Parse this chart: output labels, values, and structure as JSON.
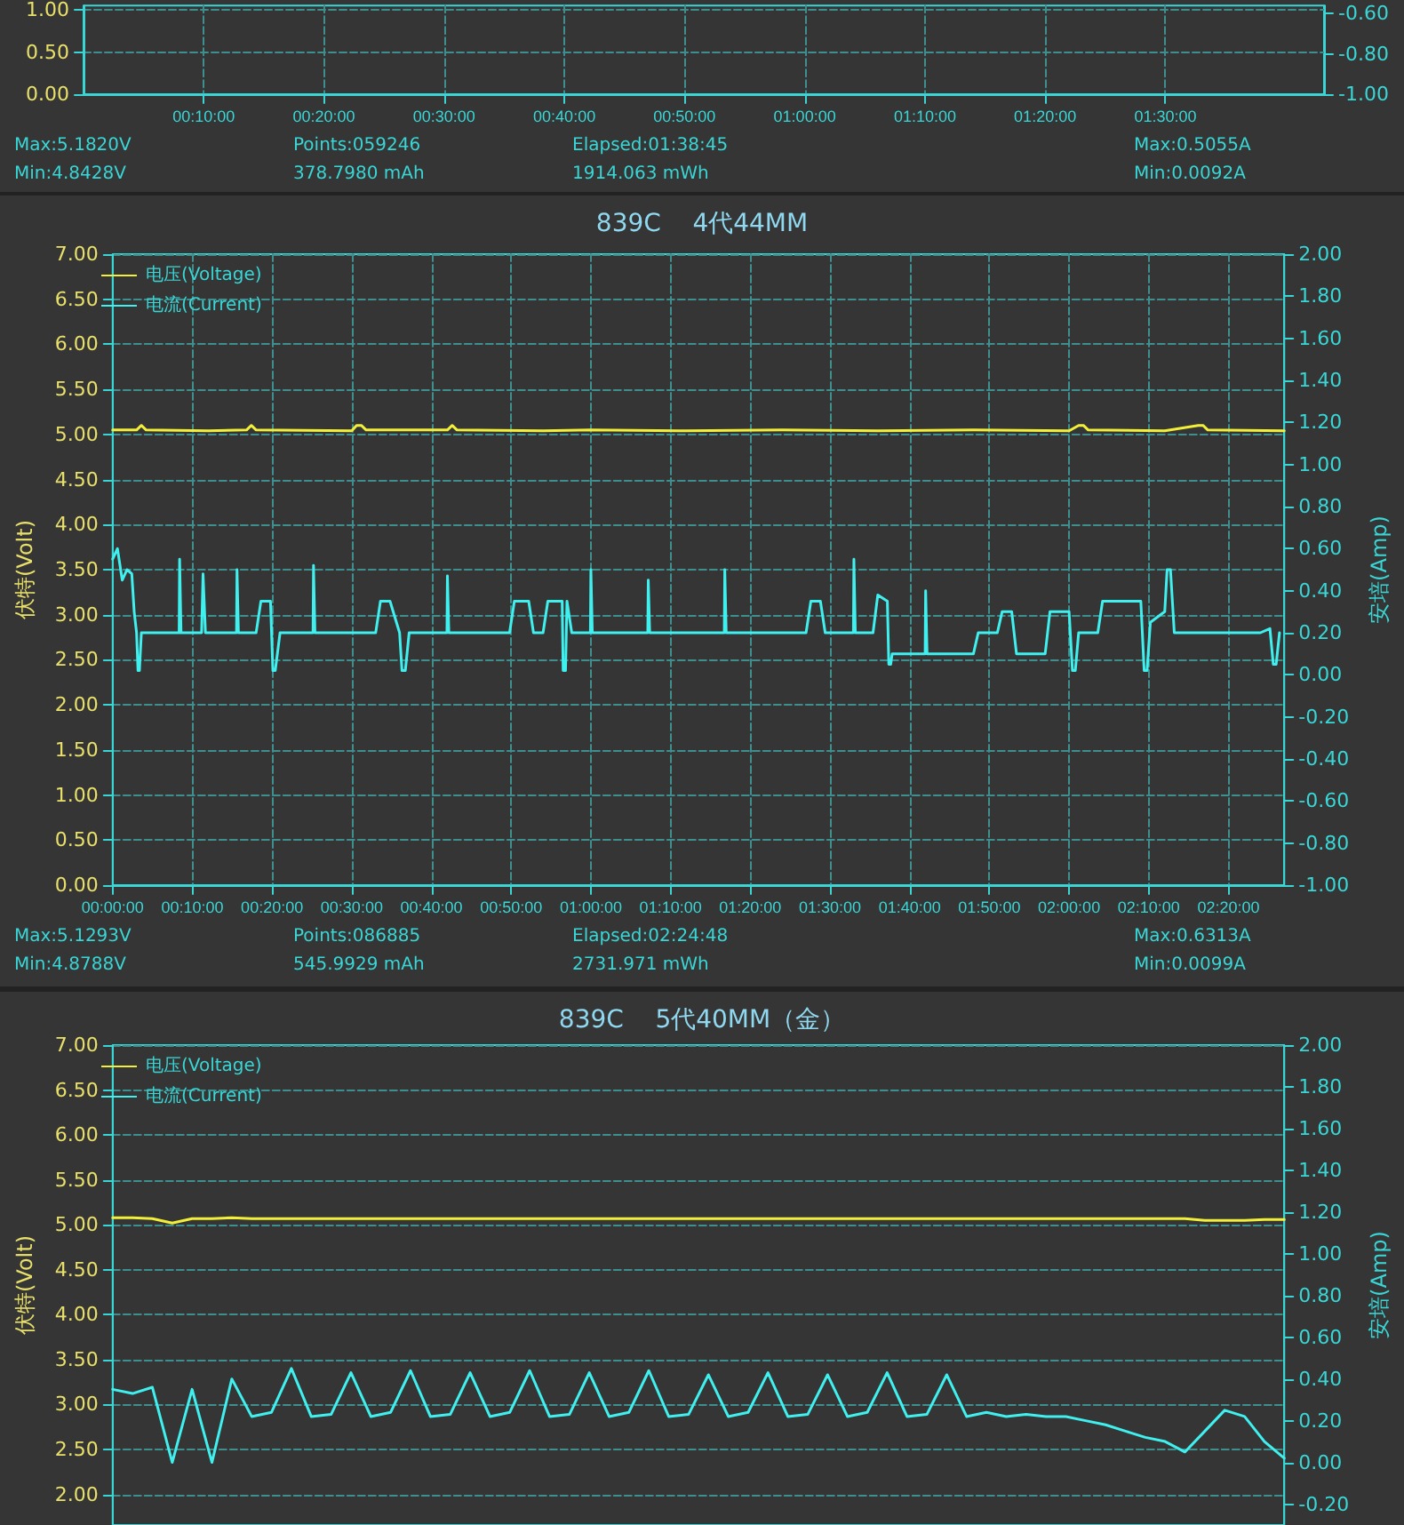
{
  "chart_data": [
    {
      "type": "line",
      "xlim": [
        0,
        1.72
      ],
      "xticks": [
        {
          "value": 0.1667,
          "label": "00:10:00"
        },
        {
          "value": 0.3333,
          "label": "00:20:00"
        },
        {
          "value": 0.5,
          "label": "00:30:00"
        },
        {
          "value": 0.6667,
          "label": "00:40:00"
        },
        {
          "value": 0.8333,
          "label": "00:50:00"
        },
        {
          "value": 1,
          "label": "01:00:00"
        },
        {
          "value": 1.1667,
          "label": "01:10:00"
        },
        {
          "value": 1.3333,
          "label": "01:20:00"
        },
        {
          "value": 1.5,
          "label": "01:30:00"
        }
      ],
      "ylim": [
        0,
        1.05
      ],
      "yticks": [
        {
          "value": 0,
          "label": "0.00"
        },
        {
          "value": 0.5,
          "label": "0.50"
        },
        {
          "value": 1,
          "label": "1.00"
        }
      ],
      "y2lim": [
        -1,
        -0.56
      ],
      "y2ticks": [
        {
          "value": -1,
          "label": "-1.00"
        },
        {
          "value": -0.8,
          "label": "-0.80"
        },
        {
          "value": -0.6,
          "label": "-0.60"
        }
      ],
      "grid": true,
      "annotations": [
        "Max:5.1820V",
        "Min:4.8428V",
        "Points:059246",
        "378.7980 mAh",
        "Elapsed:01:38:45",
        "1914.063 mWh",
        "Max:0.5055A",
        "Min:0.0092A"
      ]
    },
    {
      "type": "line",
      "title": "839C    4代44MM",
      "ylabel": "伏特(Volt)",
      "y2label": "安培(Amp)",
      "xlim": [
        0,
        2.45
      ],
      "xticks": [
        {
          "value": 0,
          "label": "00:00:00"
        },
        {
          "value": 0.1667,
          "label": "00:10:00"
        },
        {
          "value": 0.3333,
          "label": "00:20:00"
        },
        {
          "value": 0.5,
          "label": "00:30:00"
        },
        {
          "value": 0.6667,
          "label": "00:40:00"
        },
        {
          "value": 0.8333,
          "label": "00:50:00"
        },
        {
          "value": 1,
          "label": "01:00:00"
        },
        {
          "value": 1.1667,
          "label": "01:10:00"
        },
        {
          "value": 1.3333,
          "label": "01:20:00"
        },
        {
          "value": 1.5,
          "label": "01:30:00"
        },
        {
          "value": 1.6667,
          "label": "01:40:00"
        },
        {
          "value": 1.8333,
          "label": "01:50:00"
        },
        {
          "value": 2,
          "label": "02:00:00"
        },
        {
          "value": 2.1667,
          "label": "02:10:00"
        },
        {
          "value": 2.3333,
          "label": "02:20:00"
        }
      ],
      "ylim": [
        0,
        7
      ],
      "yticks": [
        {
          "value": 0,
          "label": "0.00"
        },
        {
          "value": 0.5,
          "label": "0.50"
        },
        {
          "value": 1,
          "label": "1.00"
        },
        {
          "value": 1.5,
          "label": "1.50"
        },
        {
          "value": 2,
          "label": "2.00"
        },
        {
          "value": 2.5,
          "label": "2.50"
        },
        {
          "value": 3,
          "label": "3.00"
        },
        {
          "value": 3.5,
          "label": "3.50"
        },
        {
          "value": 4,
          "label": "4.00"
        },
        {
          "value": 4.5,
          "label": "4.50"
        },
        {
          "value": 5,
          "label": "5.00"
        },
        {
          "value": 5.5,
          "label": "5.50"
        },
        {
          "value": 6,
          "label": "6.00"
        },
        {
          "value": 6.5,
          "label": "6.50"
        },
        {
          "value": 7,
          "label": "7.00"
        }
      ],
      "y2lim": [
        -1,
        2
      ],
      "y2ticks": [
        {
          "value": -1,
          "label": "-1.00"
        },
        {
          "value": -0.8,
          "label": "-0.80"
        },
        {
          "value": -0.6,
          "label": "-0.60"
        },
        {
          "value": -0.4,
          "label": "-0.40"
        },
        {
          "value": -0.2,
          "label": "-0.20"
        },
        {
          "value": 0,
          "label": "0.00"
        },
        {
          "value": 0.2,
          "label": "0.20"
        },
        {
          "value": 0.4,
          "label": "0.40"
        },
        {
          "value": 0.6,
          "label": "0.60"
        },
        {
          "value": 0.8,
          "label": "0.80"
        },
        {
          "value": 1,
          "label": "1.00"
        },
        {
          "value": 1.2,
          "label": "1.20"
        },
        {
          "value": 1.4,
          "label": "1.40"
        },
        {
          "value": 1.6,
          "label": "1.60"
        },
        {
          "value": 1.8,
          "label": "1.80"
        },
        {
          "value": 2,
          "label": "2.00"
        }
      ],
      "series": [
        {
          "name": "电压(Voltage)",
          "color": "#f2ef3a",
          "x": [
            0,
            0.05,
            0.06,
            0.07,
            0.2,
            0.28,
            0.29,
            0.3,
            0.5,
            0.51,
            0.52,
            0.53,
            0.6,
            0.7,
            0.71,
            0.72,
            0.9,
            1.0,
            1.2,
            1.4,
            1.6,
            1.8,
            2.0,
            2.02,
            2.03,
            2.04,
            2.2,
            2.27,
            2.28,
            2.29,
            2.45
          ],
          "values": [
            5.05,
            5.05,
            5.1,
            5.05,
            5.04,
            5.05,
            5.1,
            5.05,
            5.04,
            5.1,
            5.1,
            5.05,
            5.05,
            5.05,
            5.1,
            5.05,
            5.04,
            5.05,
            5.04,
            5.05,
            5.04,
            5.05,
            5.04,
            5.1,
            5.1,
            5.05,
            5.04,
            5.1,
            5.1,
            5.05,
            5.04
          ]
        },
        {
          "name": "电流(Current)",
          "color": "#3ff0ee",
          "axis": "y2",
          "x": [
            0,
            0.01,
            0.02,
            0.03,
            0.04,
            0.045,
            0.05,
            0.053,
            0.056,
            0.06,
            0.139,
            0.14,
            0.142,
            0.143,
            0.186,
            0.189,
            0.191,
            0.194,
            0.259,
            0.26,
            0.262,
            0.263,
            0.3,
            0.31,
            0.33,
            0.335,
            0.34,
            0.35,
            0.419,
            0.42,
            0.422,
            0.423,
            0.55,
            0.56,
            0.58,
            0.6,
            0.605,
            0.612,
            0.62,
            0.699,
            0.7,
            0.702,
            0.703,
            0.83,
            0.84,
            0.87,
            0.88,
            0.9,
            0.91,
            0.94,
            0.942,
            0.947,
            0.95,
            0.96,
            0.999,
            1.0,
            1.002,
            1.003,
            1.119,
            1.12,
            1.122,
            1.123,
            1.279,
            1.28,
            1.282,
            1.283,
            1.45,
            1.46,
            1.48,
            1.49,
            1.549,
            1.55,
            1.552,
            1.553,
            1.59,
            1.6,
            1.62,
            1.623,
            1.627,
            1.63,
            1.699,
            1.7,
            1.702,
            1.703,
            1.8,
            1.81,
            1.85,
            1.86,
            1.88,
            1.89,
            1.95,
            1.96,
            2.0,
            2.007,
            2.013,
            2.02,
            2.06,
            2.07,
            2.15,
            2.157,
            2.163,
            2.17,
            2.2,
            2.205,
            2.212,
            2.22,
            2.4,
            2.42,
            2.427,
            2.433,
            2.44
          ],
          "values": [
            0.55,
            0.6,
            0.45,
            0.5,
            0.48,
            0.3,
            0.2,
            0.02,
            0.02,
            0.2,
            0.2,
            0.55,
            0.55,
            0.2,
            0.2,
            0.48,
            0.48,
            0.2,
            0.2,
            0.5,
            0.5,
            0.2,
            0.2,
            0.35,
            0.35,
            0.02,
            0.02,
            0.2,
            0.2,
            0.52,
            0.52,
            0.2,
            0.2,
            0.35,
            0.35,
            0.2,
            0.02,
            0.02,
            0.2,
            0.2,
            0.47,
            0.47,
            0.2,
            0.2,
            0.35,
            0.35,
            0.2,
            0.2,
            0.35,
            0.35,
            0.02,
            0.02,
            0.35,
            0.2,
            0.2,
            0.5,
            0.5,
            0.2,
            0.2,
            0.45,
            0.45,
            0.2,
            0.2,
            0.5,
            0.5,
            0.2,
            0.2,
            0.35,
            0.35,
            0.2,
            0.2,
            0.55,
            0.55,
            0.2,
            0.2,
            0.38,
            0.35,
            0.05,
            0.05,
            0.1,
            0.1,
            0.4,
            0.4,
            0.1,
            0.1,
            0.2,
            0.2,
            0.3,
            0.3,
            0.1,
            0.1,
            0.3,
            0.3,
            0.02,
            0.02,
            0.2,
            0.2,
            0.35,
            0.35,
            0.02,
            0.02,
            0.25,
            0.3,
            0.5,
            0.5,
            0.2,
            0.2,
            0.22,
            0.05,
            0.05,
            0.2
          ]
        }
      ],
      "grid": true,
      "legend": "top left",
      "marker": "none",
      "annotations": [
        "Max:5.1293V",
        "Min:4.8788V",
        "Points:086885",
        "545.9929 mAh",
        "Elapsed:02:24:48",
        "2731.971 mWh",
        "Max:0.6313A",
        "Min:0.0099A"
      ]
    },
    {
      "type": "line",
      "title": "839C    5代40MM（金）",
      "ylabel": "伏特(Volt)",
      "y2label": "安培(Amp)",
      "categories": [
        null,
        null,
        null,
        null,
        null,
        null,
        null,
        null,
        null,
        null,
        null,
        null,
        null,
        null,
        null,
        null,
        null,
        null,
        null,
        null,
        null,
        null,
        null,
        null,
        null,
        null,
        null,
        null,
        null,
        null,
        null,
        null,
        null,
        null,
        null,
        null,
        null,
        null,
        null,
        null,
        null,
        null,
        null,
        null,
        null,
        null,
        null,
        null,
        null,
        null,
        null,
        null,
        null,
        null,
        null,
        null,
        null,
        null,
        null,
        null
      ],
      "ylim": [
        1.66,
        7
      ],
      "yticks": [
        {
          "value": 2,
          "label": "2.00"
        },
        {
          "value": 2.5,
          "label": "2.50"
        },
        {
          "value": 3,
          "label": "3.00"
        },
        {
          "value": 3.5,
          "label": "3.50"
        },
        {
          "value": 4,
          "label": "4.00"
        },
        {
          "value": 4.5,
          "label": "4.50"
        },
        {
          "value": 5,
          "label": "5.00"
        },
        {
          "value": 5.5,
          "label": "5.50"
        },
        {
          "value": 6,
          "label": "6.00"
        },
        {
          "value": 6.5,
          "label": "6.50"
        },
        {
          "value": 7,
          "label": "7.00"
        }
      ],
      "y2lim": [
        -0.3,
        2
      ],
      "y2ticks": [
        {
          "value": -0.2,
          "label": "-0.20"
        },
        {
          "value": 0,
          "label": "0.00"
        },
        {
          "value": 0.2,
          "label": "0.20"
        },
        {
          "value": 0.4,
          "label": "0.40"
        },
        {
          "value": 0.6,
          "label": "0.60"
        },
        {
          "value": 0.8,
          "label": "0.80"
        },
        {
          "value": 1,
          "label": "1.00"
        },
        {
          "value": 1.2,
          "label": "1.20"
        },
        {
          "value": 1.4,
          "label": "1.40"
        },
        {
          "value": 1.6,
          "label": "1.60"
        },
        {
          "value": 1.8,
          "label": "1.80"
        },
        {
          "value": 2,
          "label": "2.00"
        }
      ],
      "series": [
        {
          "name": "电压(Voltage)",
          "color": "#f2ef3a",
          "values": [
            5.08,
            5.08,
            5.07,
            5.02,
            5.07,
            5.07,
            5.08,
            5.07,
            5.07,
            5.07,
            5.07,
            5.07,
            5.07,
            5.07,
            5.07,
            5.07,
            5.07,
            5.07,
            5.07,
            5.07,
            5.07,
            5.07,
            5.07,
            5.07,
            5.07,
            5.07,
            5.07,
            5.07,
            5.07,
            5.07,
            5.07,
            5.07,
            5.07,
            5.07,
            5.07,
            5.07,
            5.07,
            5.07,
            5.07,
            5.07,
            5.07,
            5.07,
            5.07,
            5.07,
            5.07,
            5.07,
            5.07,
            5.07,
            5.07,
            5.07,
            5.07,
            5.07,
            5.07,
            5.07,
            5.07,
            5.05,
            5.05,
            5.05,
            5.06,
            5.06
          ]
        },
        {
          "name": "电流(Current)",
          "color": "#3ff0ee",
          "axis": "y2",
          "values": [
            0.35,
            0.33,
            0.36,
            0.0,
            0.35,
            0.0,
            0.4,
            0.22,
            0.24,
            0.45,
            0.22,
            0.23,
            0.43,
            0.22,
            0.24,
            0.44,
            0.22,
            0.23,
            0.43,
            0.22,
            0.24,
            0.44,
            0.22,
            0.23,
            0.43,
            0.22,
            0.24,
            0.44,
            0.22,
            0.23,
            0.42,
            0.22,
            0.24,
            0.43,
            0.22,
            0.23,
            0.42,
            0.22,
            0.24,
            0.43,
            0.22,
            0.23,
            0.42,
            0.22,
            0.24,
            0.22,
            0.23,
            0.22,
            0.22,
            0.2,
            0.18,
            0.15,
            0.12,
            0.1,
            0.05,
            0.15,
            0.25,
            0.22,
            0.1,
            0.02
          ]
        }
      ],
      "grid": true,
      "legend": "top left",
      "marker": "none",
      "tick_labels": "y"
    }
  ]
}
